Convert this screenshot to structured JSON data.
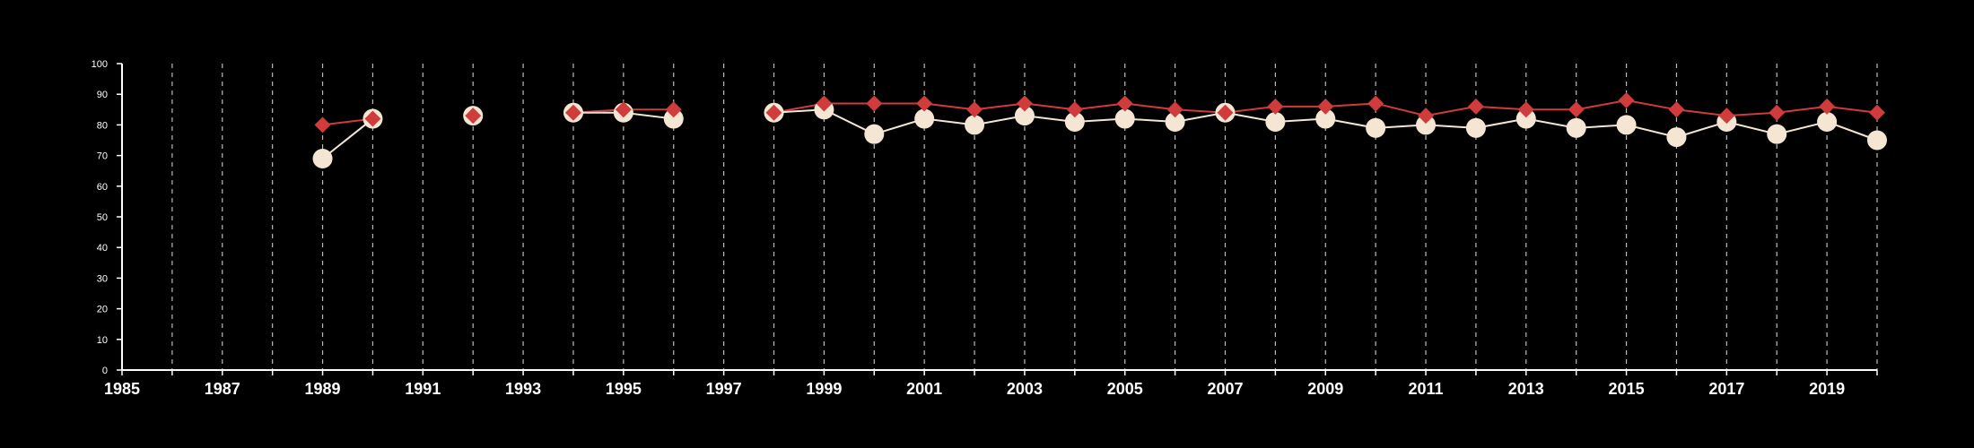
{
  "chart_data": {
    "type": "line",
    "title": "",
    "xlabel": "",
    "ylabel": "",
    "xlim": [
      1985,
      2020
    ],
    "ylim": [
      0,
      100
    ],
    "x_ticks": [
      1985,
      1987,
      1989,
      1991,
      1993,
      1995,
      1997,
      1999,
      2001,
      2003,
      2005,
      2007,
      2009,
      2011,
      2013,
      2015,
      2017,
      2019
    ],
    "y_ticks": [
      0,
      10,
      20,
      30,
      40,
      50,
      60,
      70,
      80,
      90,
      100
    ],
    "x_tick_labels": [
      "1985",
      "1987",
      "1989",
      "1991",
      "1993",
      "1995",
      "1997",
      "1999",
      "2001",
      "2003",
      "2005",
      "2007",
      "2009",
      "2011",
      "2013",
      "2015",
      "2017",
      "2019"
    ],
    "y_tick_labels": [
      "0",
      "10",
      "20",
      "30",
      "40",
      "50",
      "60",
      "70",
      "80",
      "90",
      "100"
    ],
    "vertical_grid": {
      "style": "dashed",
      "color": "#bbbbbb",
      "years": [
        1986,
        1987,
        1988,
        1989,
        1990,
        1991,
        1992,
        1993,
        1994,
        1995,
        1996,
        1997,
        1998,
        1999,
        2000,
        2001,
        2002,
        2003,
        2004,
        2005,
        2006,
        2007,
        2008,
        2009,
        2010,
        2011,
        2012,
        2013,
        2014,
        2015,
        2016,
        2017,
        2018,
        2019,
        2020
      ]
    },
    "legend": "none",
    "series": [
      {
        "marker": "diamond",
        "color": "#d03b3b",
        "segments": [
          [
            [
              1989,
              80
            ],
            [
              1990,
              82
            ]
          ],
          [
            [
              1992,
              83
            ]
          ],
          [
            [
              1994,
              84
            ],
            [
              1995,
              85
            ],
            [
              1996,
              85
            ]
          ],
          [
            [
              1998,
              84
            ],
            [
              1999,
              87
            ],
            [
              2000,
              87
            ],
            [
              2001,
              87
            ],
            [
              2002,
              85
            ],
            [
              2003,
              87
            ],
            [
              2004,
              85
            ],
            [
              2005,
              87
            ],
            [
              2006,
              85
            ],
            [
              2007,
              84
            ],
            [
              2008,
              86
            ],
            [
              2009,
              86
            ],
            [
              2010,
              87
            ],
            [
              2011,
              83
            ],
            [
              2012,
              86
            ],
            [
              2013,
              85
            ],
            [
              2014,
              85
            ],
            [
              2015,
              88
            ],
            [
              2016,
              85
            ],
            [
              2017,
              83
            ],
            [
              2018,
              84
            ],
            [
              2019,
              86
            ],
            [
              2020,
              84
            ]
          ]
        ]
      },
      {
        "marker": "circle",
        "color": "#f5e6d3",
        "segments": [
          [
            [
              1989,
              69
            ],
            [
              1990,
              82
            ]
          ],
          [
            [
              1992,
              83
            ]
          ],
          [
            [
              1994,
              84
            ],
            [
              1995,
              84
            ],
            [
              1996,
              82
            ]
          ],
          [
            [
              1998,
              84
            ],
            [
              1999,
              85
            ],
            [
              2000,
              77
            ],
            [
              2001,
              82
            ],
            [
              2002,
              80
            ],
            [
              2003,
              83
            ],
            [
              2004,
              81
            ],
            [
              2005,
              82
            ],
            [
              2006,
              81
            ],
            [
              2007,
              84
            ],
            [
              2008,
              81
            ],
            [
              2009,
              82
            ],
            [
              2010,
              79
            ],
            [
              2011,
              80
            ],
            [
              2012,
              79
            ],
            [
              2013,
              82
            ],
            [
              2014,
              79
            ],
            [
              2015,
              80
            ],
            [
              2016,
              76
            ],
            [
              2017,
              81
            ],
            [
              2018,
              77
            ],
            [
              2019,
              81
            ],
            [
              2020,
              75
            ]
          ]
        ]
      }
    ]
  }
}
